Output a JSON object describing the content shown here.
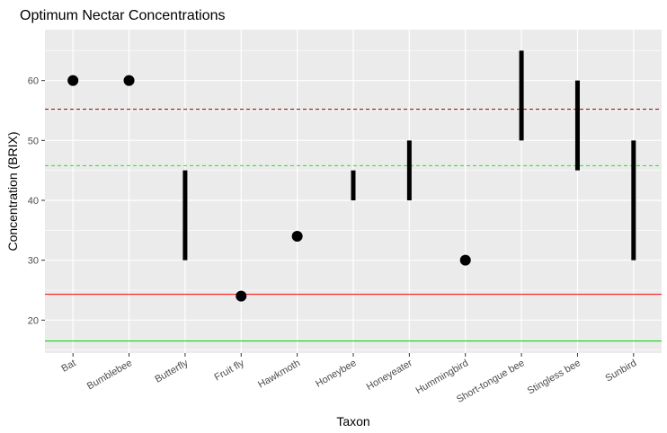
{
  "chart_data": {
    "type": "scatter",
    "title": "Optimum Nectar Concentrations",
    "xlabel": "Taxon",
    "ylabel": "Concentration (BRIX)",
    "ylim": [
      14.5,
      68.5
    ],
    "yticks": [
      20,
      30,
      40,
      50,
      60
    ],
    "categories": [
      "Bat",
      "Bumblebee",
      "Butterfly",
      "Fruit fly",
      "Hawkmoth",
      "Honeybee",
      "Honeyeater",
      "Hummingbird",
      "Short-tongue bee",
      "Stingless bee",
      "Sunbird"
    ],
    "ranges": [
      {
        "taxon": "Bat",
        "low": 60,
        "high": 60
      },
      {
        "taxon": "Bumblebee",
        "low": 60,
        "high": 60
      },
      {
        "taxon": "Butterfly",
        "low": 30,
        "high": 45
      },
      {
        "taxon": "Fruit fly",
        "low": 24,
        "high": 24
      },
      {
        "taxon": "Hawkmoth",
        "low": 34,
        "high": 34
      },
      {
        "taxon": "Honeybee",
        "low": 40,
        "high": 45
      },
      {
        "taxon": "Honeyeater",
        "low": 40,
        "high": 50
      },
      {
        "taxon": "Hummingbird",
        "low": 30,
        "high": 30
      },
      {
        "taxon": "Short-tongue bee",
        "low": 50,
        "high": 65
      },
      {
        "taxon": "Stingless bee",
        "low": 45,
        "high": 60
      },
      {
        "taxon": "Sunbird",
        "low": 30,
        "high": 50
      }
    ],
    "reference_lines": [
      {
        "y": 55.2,
        "color": "#8b0000",
        "style": "dashed"
      },
      {
        "y": 45.8,
        "color": "#00ff00",
        "style": "dashed"
      },
      {
        "y": 24.3,
        "color": "#ff0000",
        "style": "solid"
      },
      {
        "y": 16.5,
        "color": "#00cc00",
        "style": "solid"
      }
    ],
    "grid": true,
    "panel_background": "#ebebeb",
    "mark_color": "#000000"
  }
}
